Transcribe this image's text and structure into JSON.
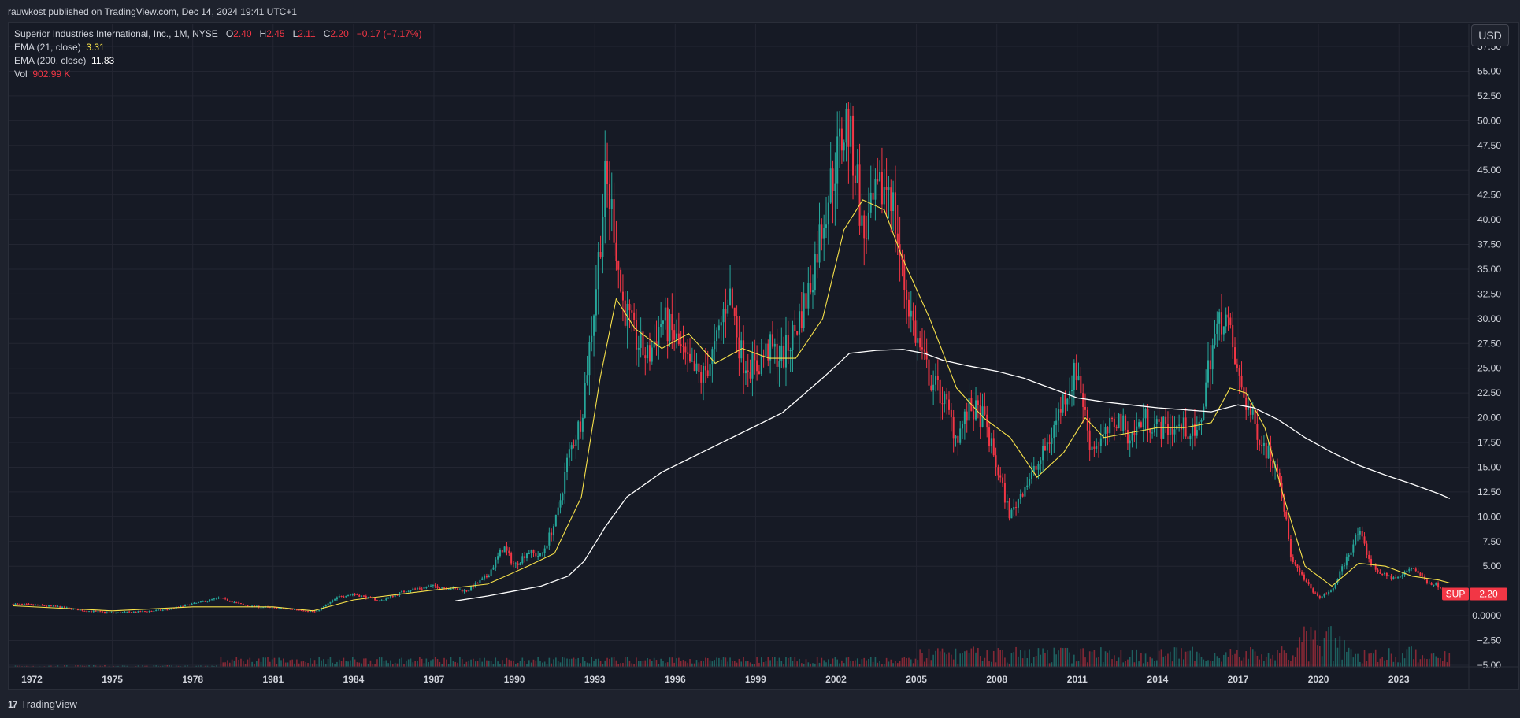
{
  "header": {
    "publish_text": "rauwkost published on TradingView.com, Dec 14, 2024 19:41 UTC+1"
  },
  "legend": {
    "symbol_line": "Superior Industries International, Inc., 1M, NYSE",
    "o_label": "O",
    "o_value": "2.40",
    "h_label": "H",
    "h_value": "2.45",
    "l_label": "L",
    "l_value": "2.11",
    "c_label": "C",
    "c_value": "2.20",
    "change": "−0.17 (−7.17%)",
    "ema21_label": "EMA (21, close)",
    "ema21_value": "3.31",
    "ema200_label": "EMA (200, close)",
    "ema200_value": "11.83",
    "vol_label": "Vol",
    "vol_value": "902.99 K"
  },
  "currency_button": "USD",
  "price_tag": {
    "symbol": "SUP",
    "value": "2.20"
  },
  "footer": {
    "logo_mark": "17",
    "logo_text": "TradingView"
  },
  "colors": {
    "up": "#26a69a",
    "down": "#f23645",
    "ema21": "#f7e14a",
    "ema200": "#ffffff",
    "background": "#161a25",
    "grid": "#232632"
  },
  "chart_data": {
    "type": "candlestick",
    "symbol": "SUP",
    "interval": "1M",
    "ylim": [
      -5,
      57.5
    ],
    "xlim": [
      1971.1,
      2026.0
    ],
    "y_ticks": [
      "57.50",
      "55.00",
      "52.50",
      "50.00",
      "47.50",
      "45.00",
      "42.50",
      "40.00",
      "37.50",
      "35.00",
      "32.50",
      "30.00",
      "27.50",
      "25.00",
      "22.50",
      "20.00",
      "17.50",
      "15.00",
      "12.50",
      "10.00",
      "7.50",
      "5.00",
      "0.0000",
      "−2.50",
      "−5.00"
    ],
    "x_ticks": [
      "1972",
      "1975",
      "1978",
      "1981",
      "1984",
      "1987",
      "1990",
      "1993",
      "1996",
      "1999",
      "2002",
      "2005",
      "2008",
      "2011",
      "2014",
      "2017",
      "2020",
      "2023"
    ],
    "last_price": 2.2,
    "price_series": {
      "name": "Close",
      "x": [
        1971.3,
        1972,
        1973,
        1974,
        1975,
        1976,
        1977,
        1978,
        1979,
        1980,
        1981,
        1982,
        1982.6,
        1983.5,
        1984,
        1985,
        1986,
        1987,
        1987.6,
        1988.2,
        1989,
        1989.6,
        1990,
        1990.5,
        1991,
        1991.6,
        1992,
        1992.5,
        1993,
        1993.4,
        1993.7,
        1994,
        1994.5,
        1995,
        1995.5,
        1996,
        1996.5,
        1997,
        1997.5,
        1998,
        1998.5,
        1999,
        1999.5,
        2000,
        2000.5,
        2001,
        2001.5,
        2002,
        2002.4,
        2002.8,
        2003,
        2003.5,
        2004,
        2004.5,
        2005,
        2005.5,
        2006,
        2006.5,
        2007,
        2007.5,
        2008,
        2008.5,
        2009,
        2009.5,
        2010,
        2010.5,
        2011,
        2011.5,
        2012,
        2012.5,
        2013,
        2013.5,
        2014,
        2014.5,
        2015,
        2015.5,
        2016,
        2016.5,
        2017,
        2017.5,
        2018,
        2018.5,
        2019,
        2019.5,
        2020,
        2020.5,
        2021,
        2021.5,
        2022,
        2022.5,
        2023,
        2023.5,
        2024,
        2024.5,
        2024.9
      ],
      "values": [
        1.2,
        1.1,
        0.9,
        0.5,
        0.3,
        0.4,
        0.6,
        1.2,
        1.8,
        1.0,
        0.8,
        0.6,
        0.4,
        2.0,
        2.2,
        1.5,
        2.6,
        3.0,
        2.8,
        2.5,
        4.0,
        7.0,
        5.0,
        6.5,
        6.0,
        10.0,
        16.0,
        20.0,
        32.0,
        44.0,
        40.0,
        32.0,
        28.0,
        26.0,
        30.0,
        28.0,
        25.0,
        24.0,
        27.0,
        33.0,
        26.0,
        25.0,
        27.0,
        26.0,
        29.0,
        33.0,
        40.0,
        46.0,
        50.0,
        44.0,
        38.0,
        42.0,
        44.0,
        34.0,
        28.0,
        24.0,
        22.0,
        18.0,
        21.0,
        20.0,
        15.0,
        10.0,
        13.0,
        15.0,
        18.0,
        22.0,
        25.0,
        17.0,
        18.0,
        20.0,
        18.0,
        20.0,
        19.0,
        19.0,
        19.0,
        18.0,
        27.0,
        31.0,
        24.0,
        20.0,
        17.0,
        15.0,
        5.5,
        3.5,
        1.8,
        2.5,
        5.5,
        8.5,
        5.0,
        4.0,
        3.8,
        5.0,
        3.5,
        3.0,
        2.2
      ]
    },
    "series": [
      {
        "name": "EMA (21, close)",
        "x": [
          1971.3,
          1975,
          1978,
          1981,
          1982.5,
          1984,
          1987,
          1989,
          1990.5,
          1991.5,
          1992.5,
          1993.2,
          1993.8,
          1994.5,
          1995.5,
          1996.5,
          1997.5,
          1998.5,
          1999.5,
          2000.5,
          2001.5,
          2002.3,
          2003,
          2003.8,
          2004.5,
          2005.5,
          2006.5,
          2007.5,
          2008.5,
          2009.5,
          2010.5,
          2011.3,
          2012,
          2013,
          2014,
          2015,
          2016,
          2016.7,
          2017.3,
          2018,
          2018.7,
          2019.5,
          2020.5,
          2021.5,
          2022.5,
          2023.5,
          2024.5,
          2024.9
        ],
        "values": [
          1.0,
          0.5,
          0.9,
          0.9,
          0.5,
          1.6,
          2.6,
          3.2,
          5.0,
          6.3,
          12.0,
          24.0,
          32.0,
          29.0,
          27.0,
          28.5,
          25.5,
          27.0,
          26.0,
          26.0,
          30.0,
          39.0,
          42.0,
          41.0,
          36.0,
          30.0,
          23.0,
          20.0,
          18.0,
          14.0,
          16.5,
          20.0,
          18.0,
          18.5,
          19.0,
          19.0,
          19.5,
          23.0,
          22.5,
          19.0,
          12.0,
          5.0,
          3.0,
          5.3,
          5.0,
          4.0,
          3.6,
          3.31
        ]
      },
      {
        "name": "EMA (200, close)",
        "x": [
          1987.8,
          1989,
          1990,
          1991,
          1992,
          1992.6,
          1993.4,
          1994.2,
          1995.5,
          1997,
          1998.5,
          2000,
          2001.5,
          2002.5,
          2003.5,
          2004.5,
          2005.3,
          2006,
          2007,
          2008,
          2009,
          2010,
          2011,
          2012,
          2013,
          2014,
          2015,
          2016,
          2017,
          2017.6,
          2018.5,
          2019.5,
          2020.5,
          2021.5,
          2022.5,
          2023.5,
          2024.5,
          2024.9
        ],
        "values": [
          1.5,
          2.0,
          2.5,
          3.0,
          4.0,
          5.5,
          9.0,
          12.0,
          14.5,
          16.5,
          18.5,
          20.5,
          24.0,
          26.5,
          26.8,
          26.9,
          26.5,
          25.8,
          25.2,
          24.7,
          24.0,
          23.0,
          22.0,
          21.6,
          21.3,
          21.0,
          20.8,
          20.6,
          21.3,
          21.0,
          19.8,
          18.0,
          16.5,
          15.2,
          14.2,
          13.3,
          12.3,
          11.83
        ]
      }
    ],
    "volume_series": {
      "name": "Vol",
      "last": "902.99 K"
    }
  }
}
